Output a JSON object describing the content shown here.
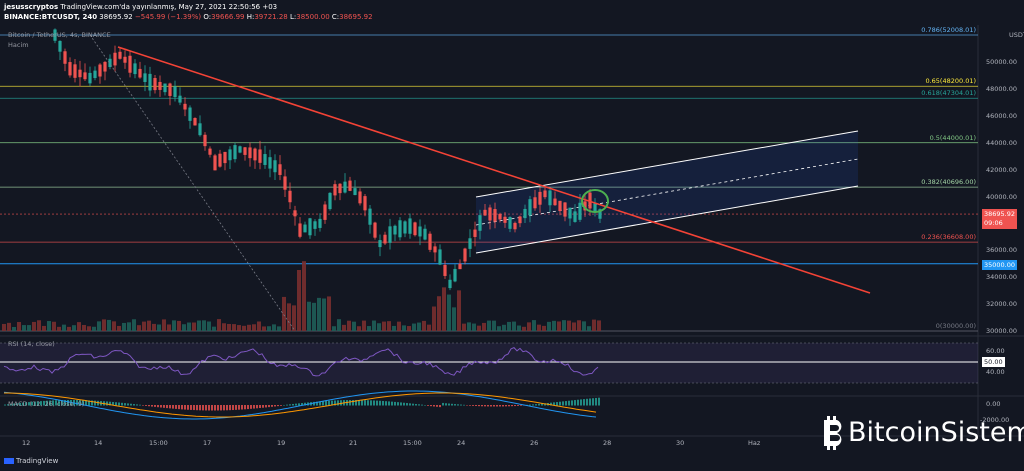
{
  "header": {
    "author": "jesusscryptos",
    "published": "TradingView.com'da yayınlanmış, May 27, 2021 22:50:56 +03",
    "symbol": "BINANCE:BTCUSDT, 240",
    "last": "38695.92",
    "change": "−545.99 (−1.39%)",
    "o_label": "O:",
    "o_value": "39666.99",
    "h_label": "H:",
    "h_value": "39721.28",
    "l_label": "L:",
    "l_value": "38500.00",
    "c_label": "C:",
    "c_value": "38695.92"
  },
  "chart_legend": {
    "title": "Bitcoin / TetherUS, 4s, BINANCE",
    "volume": "Hacim"
  },
  "price_axis": {
    "unit": "USDT",
    "ticks": [
      "50000.00",
      "48000.00",
      "46000.00",
      "44000.00",
      "42000.00",
      "40000.00",
      "38000.00",
      "36000.00",
      "34000.00",
      "32000.00",
      "30000.00"
    ]
  },
  "fib_levels": [
    {
      "label": "0.786(52008.01)",
      "value": 52008.01,
      "color": "#64b5f6"
    },
    {
      "label": "0.65(48200.01)",
      "value": 48200.01,
      "color": "#ffeb3b"
    },
    {
      "label": "0.618(47304.01)",
      "value": 47304.01,
      "color": "#26a69a"
    },
    {
      "label": "0.5(44000.01)",
      "value": 44000.01,
      "color": "#81c784"
    },
    {
      "label": "0.382(40696.00)",
      "value": 40696.0,
      "color": "#a5d6a7"
    },
    {
      "label": "0.236(36608.00)",
      "value": 36608.0,
      "color": "#ef5350"
    },
    {
      "label": "0(30000.00)",
      "value": 30000.0,
      "color": "#787b86"
    }
  ],
  "price_tag": {
    "price": "38695.92",
    "time": "09:06",
    "color": "#ef5350"
  },
  "support_tag": {
    "price": "35000.00",
    "color": "#2196f3"
  },
  "rsi": {
    "label": "RSI (14, close)",
    "ticks": [
      "60.00",
      "50.00",
      "40.00"
    ],
    "value_tag": "50.00"
  },
  "macd": {
    "label": "MACD (12, 26, close, 9)",
    "ticks": [
      "0.00",
      "-2000.00"
    ]
  },
  "time_axis": {
    "ticks": [
      "12",
      "14",
      "15:00",
      "17",
      "19",
      "21",
      "15:00",
      "24",
      "26",
      "28",
      "30",
      "Haz"
    ]
  },
  "footer": {
    "brand": "TradingView"
  },
  "watermark": {
    "text": "BitcoinSistemi"
  },
  "colors": {
    "background": "#131722",
    "up": "#26a69a",
    "down": "#ef5350",
    "trendline": "#f44336",
    "channel": "#ffffff",
    "highlight": "#4caf50",
    "rsi": "#7e57c2",
    "macd": "#2196f3",
    "signal": "#ff9800"
  }
}
